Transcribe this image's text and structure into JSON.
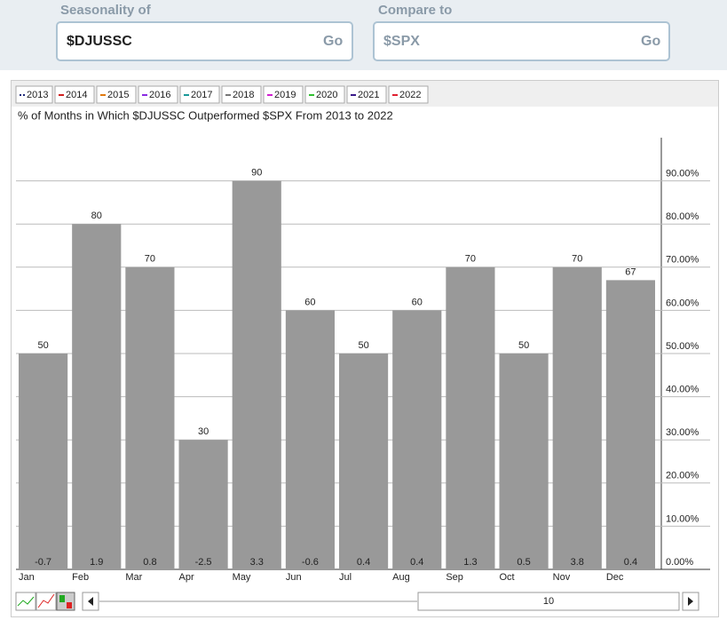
{
  "form": {
    "seasonality_label": "Seasonality of",
    "seasonality_value": "$DJUSSC",
    "compare_label": "Compare to",
    "compare_value": "$SPX",
    "go": "Go"
  },
  "chart_data": {
    "type": "bar",
    "title": "% of Months in Which $DJUSSC Outperformed $SPX From 2013 to 2022",
    "legend": [
      {
        "name": "2013",
        "color": "#1f2a7a"
      },
      {
        "name": "2014",
        "color": "#d02020"
      },
      {
        "name": "2015",
        "color": "#e07a10"
      },
      {
        "name": "2016",
        "color": "#8a2be2"
      },
      {
        "name": "2017",
        "color": "#1a9a9a"
      },
      {
        "name": "2018",
        "color": "#777777"
      },
      {
        "name": "2019",
        "color": "#d020d0"
      },
      {
        "name": "2020",
        "color": "#30c030"
      },
      {
        "name": "2021",
        "color": "#3a1a8a"
      },
      {
        "name": "2022",
        "color": "#e02030"
      }
    ],
    "categories": [
      "Jan",
      "Feb",
      "Mar",
      "Apr",
      "May",
      "Jun",
      "Jul",
      "Aug",
      "Sep",
      "Oct",
      "Nov",
      "Dec"
    ],
    "values": [
      50,
      80,
      70,
      30,
      90,
      60,
      50,
      60,
      70,
      50,
      70,
      67
    ],
    "changes": [
      -0.7,
      1.9,
      0.8,
      -2.5,
      3.3,
      -0.6,
      0.4,
      0.4,
      1.3,
      0.5,
      3.8,
      0.4
    ],
    "color": "#999999",
    "ylim": [
      0,
      100
    ],
    "yticks": [
      {
        "value": 0,
        "label": "0.00%"
      },
      {
        "value": 10,
        "label": "10.00%"
      },
      {
        "value": 20,
        "label": "20.00%"
      },
      {
        "value": 30,
        "label": "30.00%"
      },
      {
        "value": 40,
        "label": "40.00%"
      },
      {
        "value": 50,
        "label": "50.00%"
      },
      {
        "value": 60,
        "label": "60.00%"
      },
      {
        "value": 70,
        "label": "70.00%"
      },
      {
        "value": 80,
        "label": "80.00%"
      },
      {
        "value": 90,
        "label": "90.00%"
      }
    ],
    "grid": true
  },
  "controls": {
    "period": "10"
  }
}
